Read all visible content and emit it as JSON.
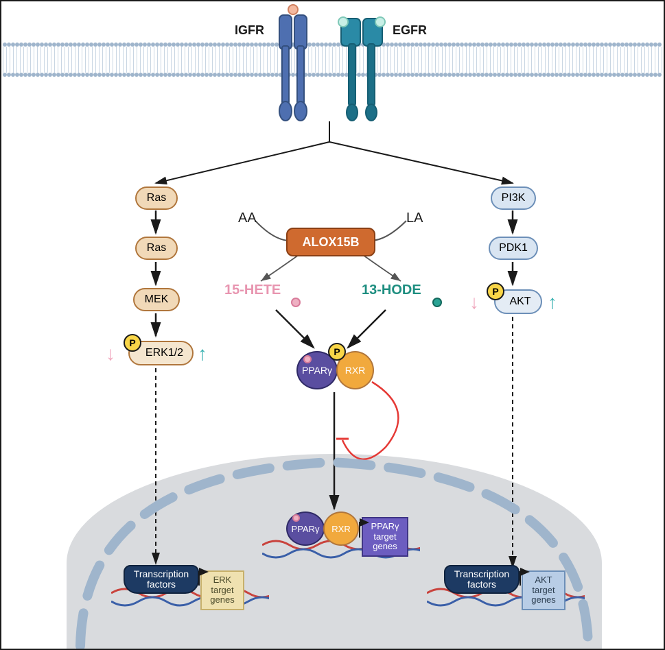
{
  "type": "flowchart",
  "receptors": {
    "igfr": {
      "label": "IGFR",
      "color": "#4e6fb0"
    },
    "egfr": {
      "label": "EGFR",
      "color": "#2a8aa6"
    }
  },
  "left_pathway": {
    "ras1": {
      "label": "Ras",
      "fill": "#f1d9b8",
      "stroke": "#b0763c"
    },
    "ras2": {
      "label": "Ras",
      "fill": "#f1d9b8",
      "stroke": "#b0763c"
    },
    "mek": {
      "label": "MEK",
      "fill": "#f1d9b8",
      "stroke": "#b0763c"
    },
    "erk": {
      "label": "ERK1/2",
      "fill": "#f5e6cf",
      "stroke": "#b0763c"
    }
  },
  "right_pathway": {
    "pi3k": {
      "label": "PI3K",
      "fill": "#d9e5f2",
      "stroke": "#6c8fb8"
    },
    "pdk1": {
      "label": "PDK1",
      "fill": "#d9e5f2",
      "stroke": "#6c8fb8"
    },
    "akt": {
      "label": "AKT",
      "fill": "#e4ecf5",
      "stroke": "#6c8fb8"
    }
  },
  "center": {
    "aa": "AA",
    "la": "LA",
    "alox15b": {
      "label": "ALOX15B",
      "fill": "#cf6a2f",
      "stroke": "#8a3f14",
      "text": "#ffffff"
    },
    "hete": {
      "label": "15-HETE",
      "color": "#e895b0",
      "dot": "#eeb0c2"
    },
    "hode": {
      "label": "13-HODE",
      "color": "#1e8e80",
      "dot": "#2aa394"
    },
    "ppar": {
      "label": "PPARγ",
      "fill": "#5a4ea0",
      "stroke": "#2f2a66",
      "text": "#ffffff"
    },
    "rxr": {
      "label": "RXR",
      "fill": "#f1a93d",
      "stroke": "#b0763c",
      "text": "#ffffff"
    }
  },
  "nucleus": {
    "bg": "#d9dbde",
    "ring": "#9fb5cc",
    "tf_label": "Transcription\nfactors",
    "tf_fill": "#1d3a63",
    "tf_stroke": "#0f223d",
    "erk_genes": {
      "label": "ERK\ntarget\ngenes",
      "fill": "#efe1b0",
      "stroke": "#c7b06a",
      "text": "#4a4a2a"
    },
    "ppar_genes": {
      "label": "PPARγ\ntarget\ngenes",
      "fill": "#6c5dc0",
      "stroke": "#3f3585"
    },
    "akt_genes": {
      "label": "AKT\ntarget\ngenes",
      "fill": "#b8cde6",
      "stroke": "#6c8fb8",
      "text": "#2c3e50"
    }
  },
  "phospho_label": "P",
  "arrows": {
    "down_pink": "#f0a8bd",
    "up_teal": "#37b1b0",
    "inhibit_red": "#e53935",
    "solid": "#1a1a1a",
    "dashed": "#1a1a1a"
  },
  "dna_colors": {
    "strand1": "#c9433d",
    "strand2": "#3a5fa8"
  }
}
